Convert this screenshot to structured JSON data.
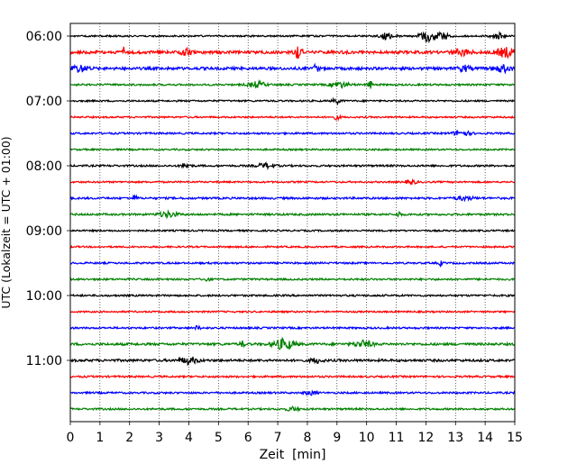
{
  "chart_data": {
    "type": "line",
    "chart_kind": "helicorder",
    "title": "",
    "xlabel": "Zeit  [min]",
    "ylabel": "UTC (Lokalzeit = UTC + 01:00)",
    "xlim": [
      0,
      15
    ],
    "x_ticks": [
      "0",
      "1",
      "2",
      "3",
      "4",
      "5",
      "6",
      "7",
      "8",
      "9",
      "10",
      "11",
      "12",
      "13",
      "14",
      "15"
    ],
    "y_tick_labels": [
      "06:00",
      "07:00",
      "08:00",
      "09:00",
      "10:00",
      "11:00"
    ],
    "grid": "vertical dotted lines at each minute",
    "color_cycle": [
      "#000000",
      "#ff0000",
      "#0000ff",
      "#008000"
    ],
    "traces": [
      {
        "start": "06:00",
        "color": "#000000",
        "noise": 0.9,
        "events": [
          {
            "t": 10.7,
            "amp": 3.5,
            "w": 0.25
          },
          {
            "t": 12.1,
            "amp": 6.0,
            "w": 0.3
          },
          {
            "t": 12.6,
            "amp": 3.5,
            "w": 0.2
          },
          {
            "t": 14.4,
            "amp": 3.5,
            "w": 0.2
          }
        ]
      },
      {
        "start": "06:15",
        "color": "#ff0000",
        "noise": 1.6,
        "events": [
          {
            "t": 1.8,
            "amp": 8.0,
            "w": 0.05
          },
          {
            "t": 3.9,
            "amp": 3.5,
            "w": 0.15
          },
          {
            "t": 7.7,
            "amp": 7.0,
            "w": 0.12
          },
          {
            "t": 13.2,
            "amp": 3.0,
            "w": 0.3
          },
          {
            "t": 14.7,
            "amp": 5.0,
            "w": 0.3
          }
        ]
      },
      {
        "start": "06:30",
        "color": "#0000ff",
        "noise": 1.5,
        "events": [
          {
            "t": 0.3,
            "amp": 3.5,
            "w": 0.3
          },
          {
            "t": 8.3,
            "amp": 4.5,
            "w": 0.08
          },
          {
            "t": 13.3,
            "amp": 3.0,
            "w": 0.2
          },
          {
            "t": 14.6,
            "amp": 3.5,
            "w": 0.3
          }
        ]
      },
      {
        "start": "06:45",
        "color": "#008000",
        "noise": 1.0,
        "events": [
          {
            "t": 6.3,
            "amp": 3.0,
            "w": 0.3
          },
          {
            "t": 9.1,
            "amp": 3.0,
            "w": 0.3
          },
          {
            "t": 10.1,
            "amp": 5.0,
            "w": 0.08
          }
        ]
      },
      {
        "start": "07:00",
        "color": "#000000",
        "noise": 0.9,
        "events": [
          {
            "t": 9.0,
            "amp": 2.5,
            "w": 0.15
          }
        ]
      },
      {
        "start": "07:15",
        "color": "#ff0000",
        "noise": 0.9,
        "events": [
          {
            "t": 9.0,
            "amp": 2.5,
            "w": 0.1
          }
        ]
      },
      {
        "start": "07:30",
        "color": "#0000ff",
        "noise": 1.0,
        "events": [
          {
            "t": 13.2,
            "amp": 2.5,
            "w": 0.3
          }
        ]
      },
      {
        "start": "07:45",
        "color": "#008000",
        "noise": 0.9,
        "events": []
      },
      {
        "start": "08:00",
        "color": "#000000",
        "noise": 1.0,
        "events": [
          {
            "t": 3.9,
            "amp": 2.5,
            "w": 0.15
          },
          {
            "t": 6.6,
            "amp": 2.5,
            "w": 0.3
          }
        ]
      },
      {
        "start": "08:15",
        "color": "#ff0000",
        "noise": 0.9,
        "events": [
          {
            "t": 11.5,
            "amp": 2.0,
            "w": 0.2
          }
        ]
      },
      {
        "start": "08:30",
        "color": "#0000ff",
        "noise": 1.1,
        "events": [
          {
            "t": 2.2,
            "amp": 4.5,
            "w": 0.06
          },
          {
            "t": 13.3,
            "amp": 2.0,
            "w": 0.3
          }
        ]
      },
      {
        "start": "08:45",
        "color": "#008000",
        "noise": 1.1,
        "events": [
          {
            "t": 3.3,
            "amp": 3.0,
            "w": 0.3
          },
          {
            "t": 11.1,
            "amp": 3.5,
            "w": 0.06
          }
        ]
      },
      {
        "start": "09:00",
        "color": "#000000",
        "noise": 0.9,
        "events": []
      },
      {
        "start": "09:15",
        "color": "#ff0000",
        "noise": 0.9,
        "events": []
      },
      {
        "start": "09:30",
        "color": "#0000ff",
        "noise": 1.0,
        "events": [
          {
            "t": 12.5,
            "amp": 2.5,
            "w": 0.06
          }
        ]
      },
      {
        "start": "09:45",
        "color": "#008000",
        "noise": 1.0,
        "events": [
          {
            "t": 4.6,
            "amp": 2.0,
            "w": 0.1
          }
        ]
      },
      {
        "start": "10:00",
        "color": "#000000",
        "noise": 1.0,
        "events": []
      },
      {
        "start": "10:15",
        "color": "#ff0000",
        "noise": 0.9,
        "events": []
      },
      {
        "start": "10:30",
        "color": "#0000ff",
        "noise": 1.0,
        "events": [
          {
            "t": 4.3,
            "amp": 2.5,
            "w": 0.08
          }
        ]
      },
      {
        "start": "10:45",
        "color": "#008000",
        "noise": 1.3,
        "events": [
          {
            "t": 5.8,
            "amp": 3.0,
            "w": 0.08
          },
          {
            "t": 7.2,
            "amp": 5.5,
            "w": 0.35
          },
          {
            "t": 9.9,
            "amp": 3.5,
            "w": 0.3
          }
        ]
      },
      {
        "start": "11:00",
        "color": "#000000",
        "noise": 1.3,
        "events": [
          {
            "t": 4.0,
            "amp": 3.5,
            "w": 0.3
          },
          {
            "t": 8.3,
            "amp": 2.5,
            "w": 0.2
          }
        ]
      },
      {
        "start": "11:15",
        "color": "#ff0000",
        "noise": 1.0,
        "events": []
      },
      {
        "start": "11:30",
        "color": "#0000ff",
        "noise": 1.0,
        "events": [
          {
            "t": 8.1,
            "amp": 2.0,
            "w": 0.2
          }
        ]
      },
      {
        "start": "11:45",
        "color": "#008000",
        "noise": 1.0,
        "events": [
          {
            "t": 7.5,
            "amp": 2.0,
            "w": 0.2
          }
        ]
      }
    ]
  }
}
